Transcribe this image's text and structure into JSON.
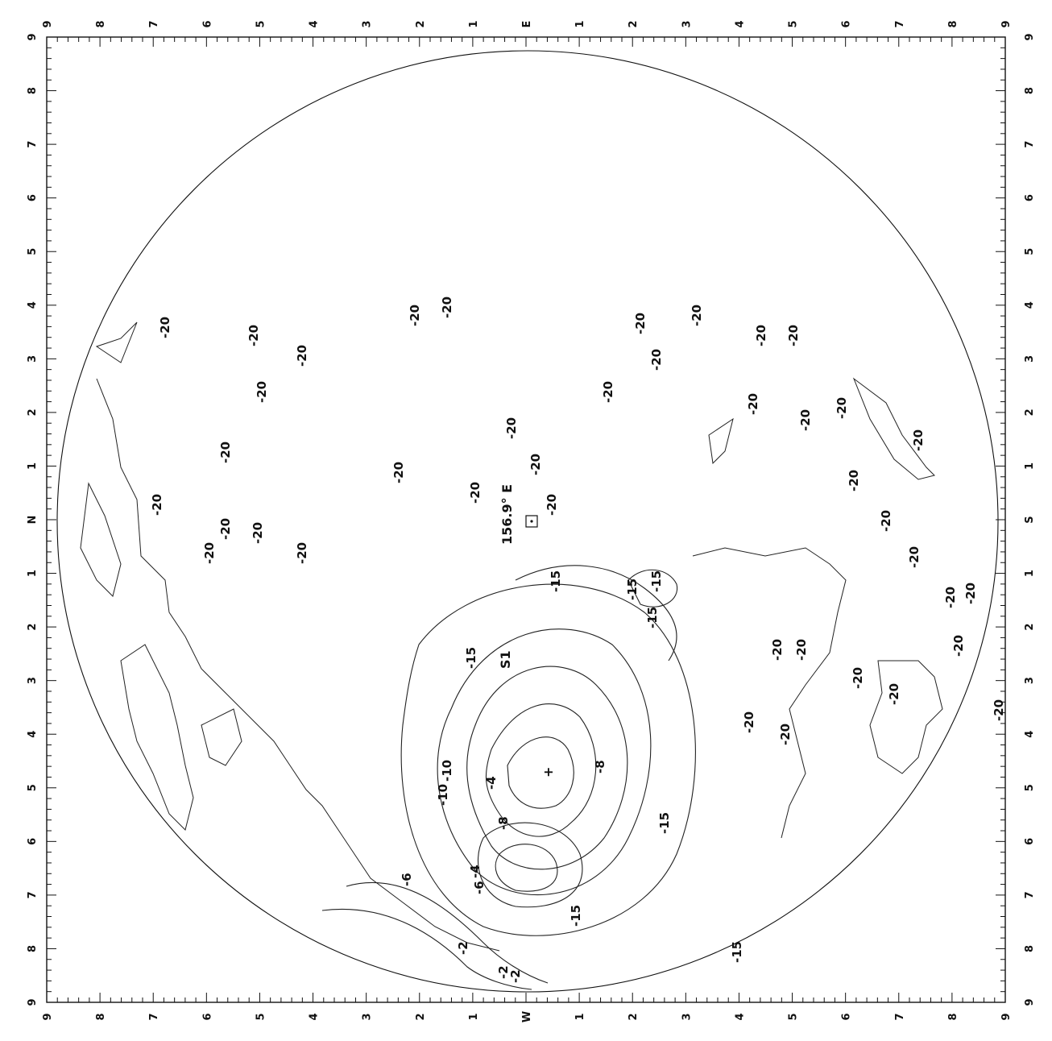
{
  "map": {
    "center_label": "156.9° E",
    "sensor_label": "S1",
    "top_ticks": [
      "9",
      "8",
      "7",
      "6",
      "5",
      "4",
      "3",
      "2",
      "1",
      "E",
      "1",
      "2",
      "3",
      "4",
      "5",
      "6",
      "7",
      "8",
      "9"
    ],
    "bottom_ticks": [
      "9",
      "8",
      "7",
      "6",
      "5",
      "4",
      "3",
      "2",
      "1",
      "W",
      "1",
      "2",
      "3",
      "4",
      "5",
      "6",
      "7",
      "8",
      "9"
    ],
    "left_ticks": [
      "9",
      "8",
      "7",
      "6",
      "5",
      "4",
      "3",
      "2",
      "1",
      "N",
      "1",
      "2",
      "3",
      "4",
      "5",
      "6",
      "7",
      "8",
      "9"
    ],
    "right_ticks": [
      "9",
      "8",
      "7",
      "6",
      "5",
      "4",
      "3",
      "2",
      "1",
      "S",
      "1",
      "2",
      "3",
      "4",
      "5",
      "6",
      "7",
      "8",
      "9"
    ],
    "contour_labels": [
      "-20",
      "-20",
      "-20",
      "-20",
      "-20",
      "-20",
      "-20",
      "-20",
      "-20",
      "-20",
      "-20",
      "-20",
      "-20",
      "-20",
      "-20",
      "-20",
      "-20",
      "-20",
      "-20",
      "-20",
      "-20",
      "-20",
      "-20",
      "-20",
      "-20",
      "-20",
      "-20",
      "-20",
      "-20",
      "-20",
      "-20",
      "-20",
      "-20",
      "-20",
      "-20",
      "-20",
      "-20",
      "-20",
      "-20",
      "-20",
      "-15",
      "-15",
      "-15",
      "-15",
      "-15",
      "-15",
      "-15",
      "-15",
      "-10",
      "-10",
      "-8",
      "-8",
      "-6",
      "-6",
      "-4",
      "-4",
      "-2",
      "-2",
      "-2"
    ]
  }
}
